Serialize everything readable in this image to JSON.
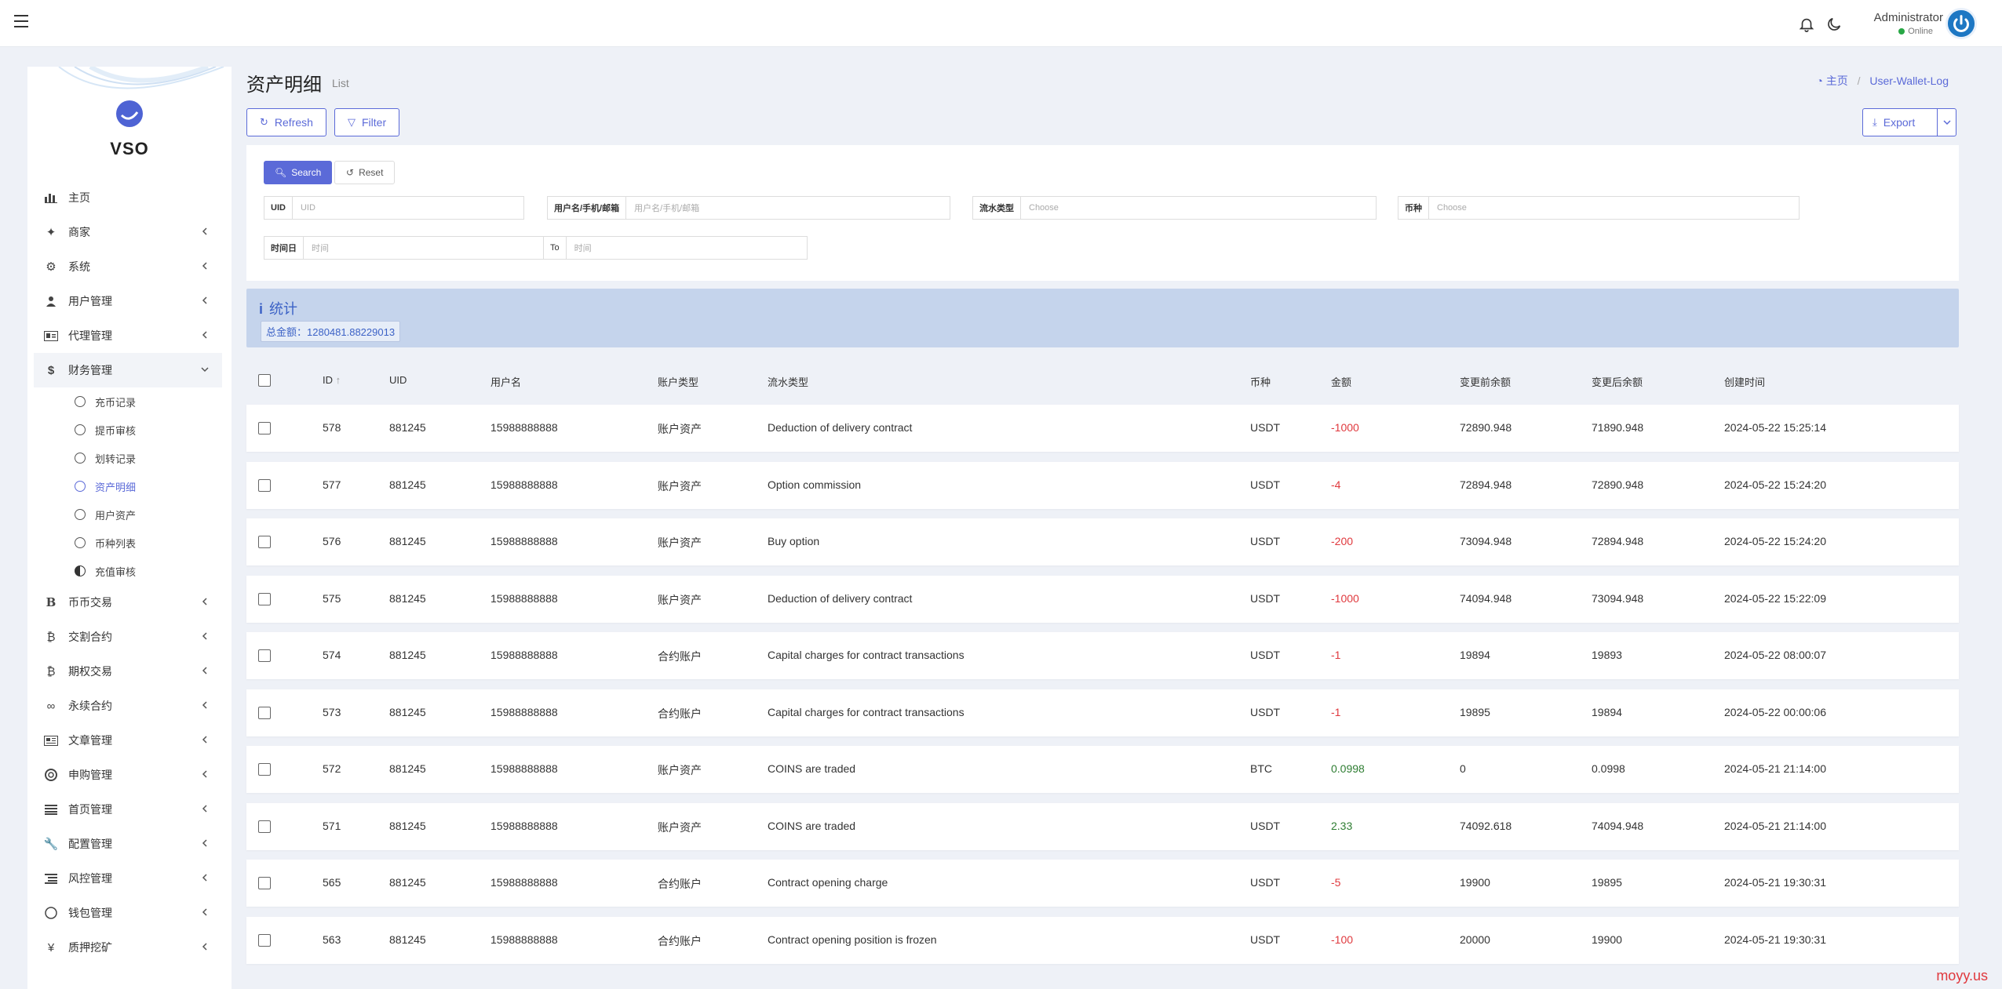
{
  "topbar": {
    "user_name": "Administrator",
    "user_status": "Online"
  },
  "brand": {
    "name": "VSO"
  },
  "sidebar": {
    "items": [
      {
        "label": "主页",
        "icon": "bar-chart-icon",
        "chevron": false
      },
      {
        "label": "商家",
        "icon": "users-icon",
        "chevron": true
      },
      {
        "label": "系统",
        "icon": "gear-icon",
        "chevron": true
      },
      {
        "label": "用户管理",
        "icon": "user-icon",
        "chevron": true
      },
      {
        "label": "代理管理",
        "icon": "id-card-icon",
        "chevron": true
      },
      {
        "label": "财务管理",
        "icon": "dollar-icon",
        "chevron": true,
        "expanded": true
      }
    ],
    "sub_items": [
      {
        "label": "充币记录",
        "active": false
      },
      {
        "label": "提币审核",
        "active": false
      },
      {
        "label": "划转记录",
        "active": false
      },
      {
        "label": "资产明细",
        "active": true
      },
      {
        "label": "用户资产",
        "active": false
      },
      {
        "label": "币种列表",
        "active": false
      },
      {
        "label": "充值审核",
        "active": false
      }
    ],
    "items_after": [
      {
        "label": "币币交易",
        "icon": "bitcoin-icon"
      },
      {
        "label": "交割合约",
        "icon": "bitcoin-icon"
      },
      {
        "label": "期权交易",
        "icon": "bitcoin-icon"
      },
      {
        "label": "永续合约",
        "icon": "link-icon"
      },
      {
        "label": "文章管理",
        "icon": "newspaper-icon"
      },
      {
        "label": "申购管理",
        "icon": "lifebuoy-icon"
      },
      {
        "label": "首页管理",
        "icon": "list-icon"
      },
      {
        "label": "配置管理",
        "icon": "wrench-icon"
      },
      {
        "label": "风控管理",
        "icon": "list-ul-icon"
      },
      {
        "label": "钱包管理",
        "icon": "circle-icon"
      },
      {
        "label": "质押挖矿",
        "icon": "yen-icon"
      }
    ]
  },
  "header": {
    "title": "资产明细",
    "subtitle": "List",
    "breadcrumb_home": "主页",
    "breadcrumb_current": "User-Wallet-Log"
  },
  "toolbar": {
    "refresh": "Refresh",
    "filter": "Filter",
    "export": "Export"
  },
  "filters": {
    "search": "Search",
    "reset": "Reset",
    "uid_label": "UID",
    "uid_placeholder": "UID",
    "user_label": "用户名/手机/邮箱",
    "user_placeholder": "用户名/手机/邮箱",
    "flow_label": "流水类型",
    "flow_placeholder": "Choose",
    "coin_label": "币种",
    "coin_placeholder": "Choose",
    "time_label": "时间日",
    "time_placeholder": "时间",
    "to_label": "To",
    "to_placeholder": "时间"
  },
  "stats": {
    "title": "统计",
    "total": "总金额：1280481.88229013"
  },
  "table": {
    "headers": [
      "ID",
      "UID",
      "用户名",
      "账户类型",
      "流水类型",
      "币种",
      "金额",
      "变更前余额",
      "变更后余额",
      "创建时间"
    ],
    "rows": [
      {
        "id": "578",
        "uid": "881245",
        "user": "15988888888",
        "acct": "账户资产",
        "flow": "Deduction of delivery contract",
        "coin": "USDT",
        "amount": "-1000",
        "sign": "neg",
        "before": "72890.948",
        "after": "71890.948",
        "time": "2024-05-22 15:25:14"
      },
      {
        "id": "577",
        "uid": "881245",
        "user": "15988888888",
        "acct": "账户资产",
        "flow": "Option commission",
        "coin": "USDT",
        "amount": "-4",
        "sign": "neg",
        "before": "72894.948",
        "after": "72890.948",
        "time": "2024-05-22 15:24:20"
      },
      {
        "id": "576",
        "uid": "881245",
        "user": "15988888888",
        "acct": "账户资产",
        "flow": "Buy option",
        "coin": "USDT",
        "amount": "-200",
        "sign": "neg",
        "before": "73094.948",
        "after": "72894.948",
        "time": "2024-05-22 15:24:20"
      },
      {
        "id": "575",
        "uid": "881245",
        "user": "15988888888",
        "acct": "账户资产",
        "flow": "Deduction of delivery contract",
        "coin": "USDT",
        "amount": "-1000",
        "sign": "neg",
        "before": "74094.948",
        "after": "73094.948",
        "time": "2024-05-22 15:22:09"
      },
      {
        "id": "574",
        "uid": "881245",
        "user": "15988888888",
        "acct": "合约账户",
        "flow": "Capital charges for contract transactions",
        "coin": "USDT",
        "amount": "-1",
        "sign": "neg",
        "before": "19894",
        "after": "19893",
        "time": "2024-05-22 08:00:07"
      },
      {
        "id": "573",
        "uid": "881245",
        "user": "15988888888",
        "acct": "合约账户",
        "flow": "Capital charges for contract transactions",
        "coin": "USDT",
        "amount": "-1",
        "sign": "neg",
        "before": "19895",
        "after": "19894",
        "time": "2024-05-22 00:00:06"
      },
      {
        "id": "572",
        "uid": "881245",
        "user": "15988888888",
        "acct": "账户资产",
        "flow": "COINS are traded",
        "coin": "BTC",
        "amount": "0.0998",
        "sign": "pos",
        "before": "0",
        "after": "0.0998",
        "time": "2024-05-21 21:14:00"
      },
      {
        "id": "571",
        "uid": "881245",
        "user": "15988888888",
        "acct": "账户资产",
        "flow": "COINS are traded",
        "coin": "USDT",
        "amount": "2.33",
        "sign": "pos",
        "before": "74092.618",
        "after": "74094.948",
        "time": "2024-05-21 21:14:00"
      },
      {
        "id": "565",
        "uid": "881245",
        "user": "15988888888",
        "acct": "合约账户",
        "flow": "Contract opening charge",
        "coin": "USDT",
        "amount": "-5",
        "sign": "neg",
        "before": "19900",
        "after": "19895",
        "time": "2024-05-21 19:30:31"
      },
      {
        "id": "563",
        "uid": "881245",
        "user": "15988888888",
        "acct": "合约账户",
        "flow": "Contract opening position is frozen",
        "coin": "USDT",
        "amount": "-100",
        "sign": "neg",
        "before": "20000",
        "after": "19900",
        "time": "2024-05-21 19:30:31"
      }
    ]
  },
  "watermark": "moyy.us",
  "colors": {
    "accent": "#5b6ad8",
    "negative": "#e0393e",
    "positive": "#2e7d32",
    "stats_bg": "#c5d4ec"
  }
}
